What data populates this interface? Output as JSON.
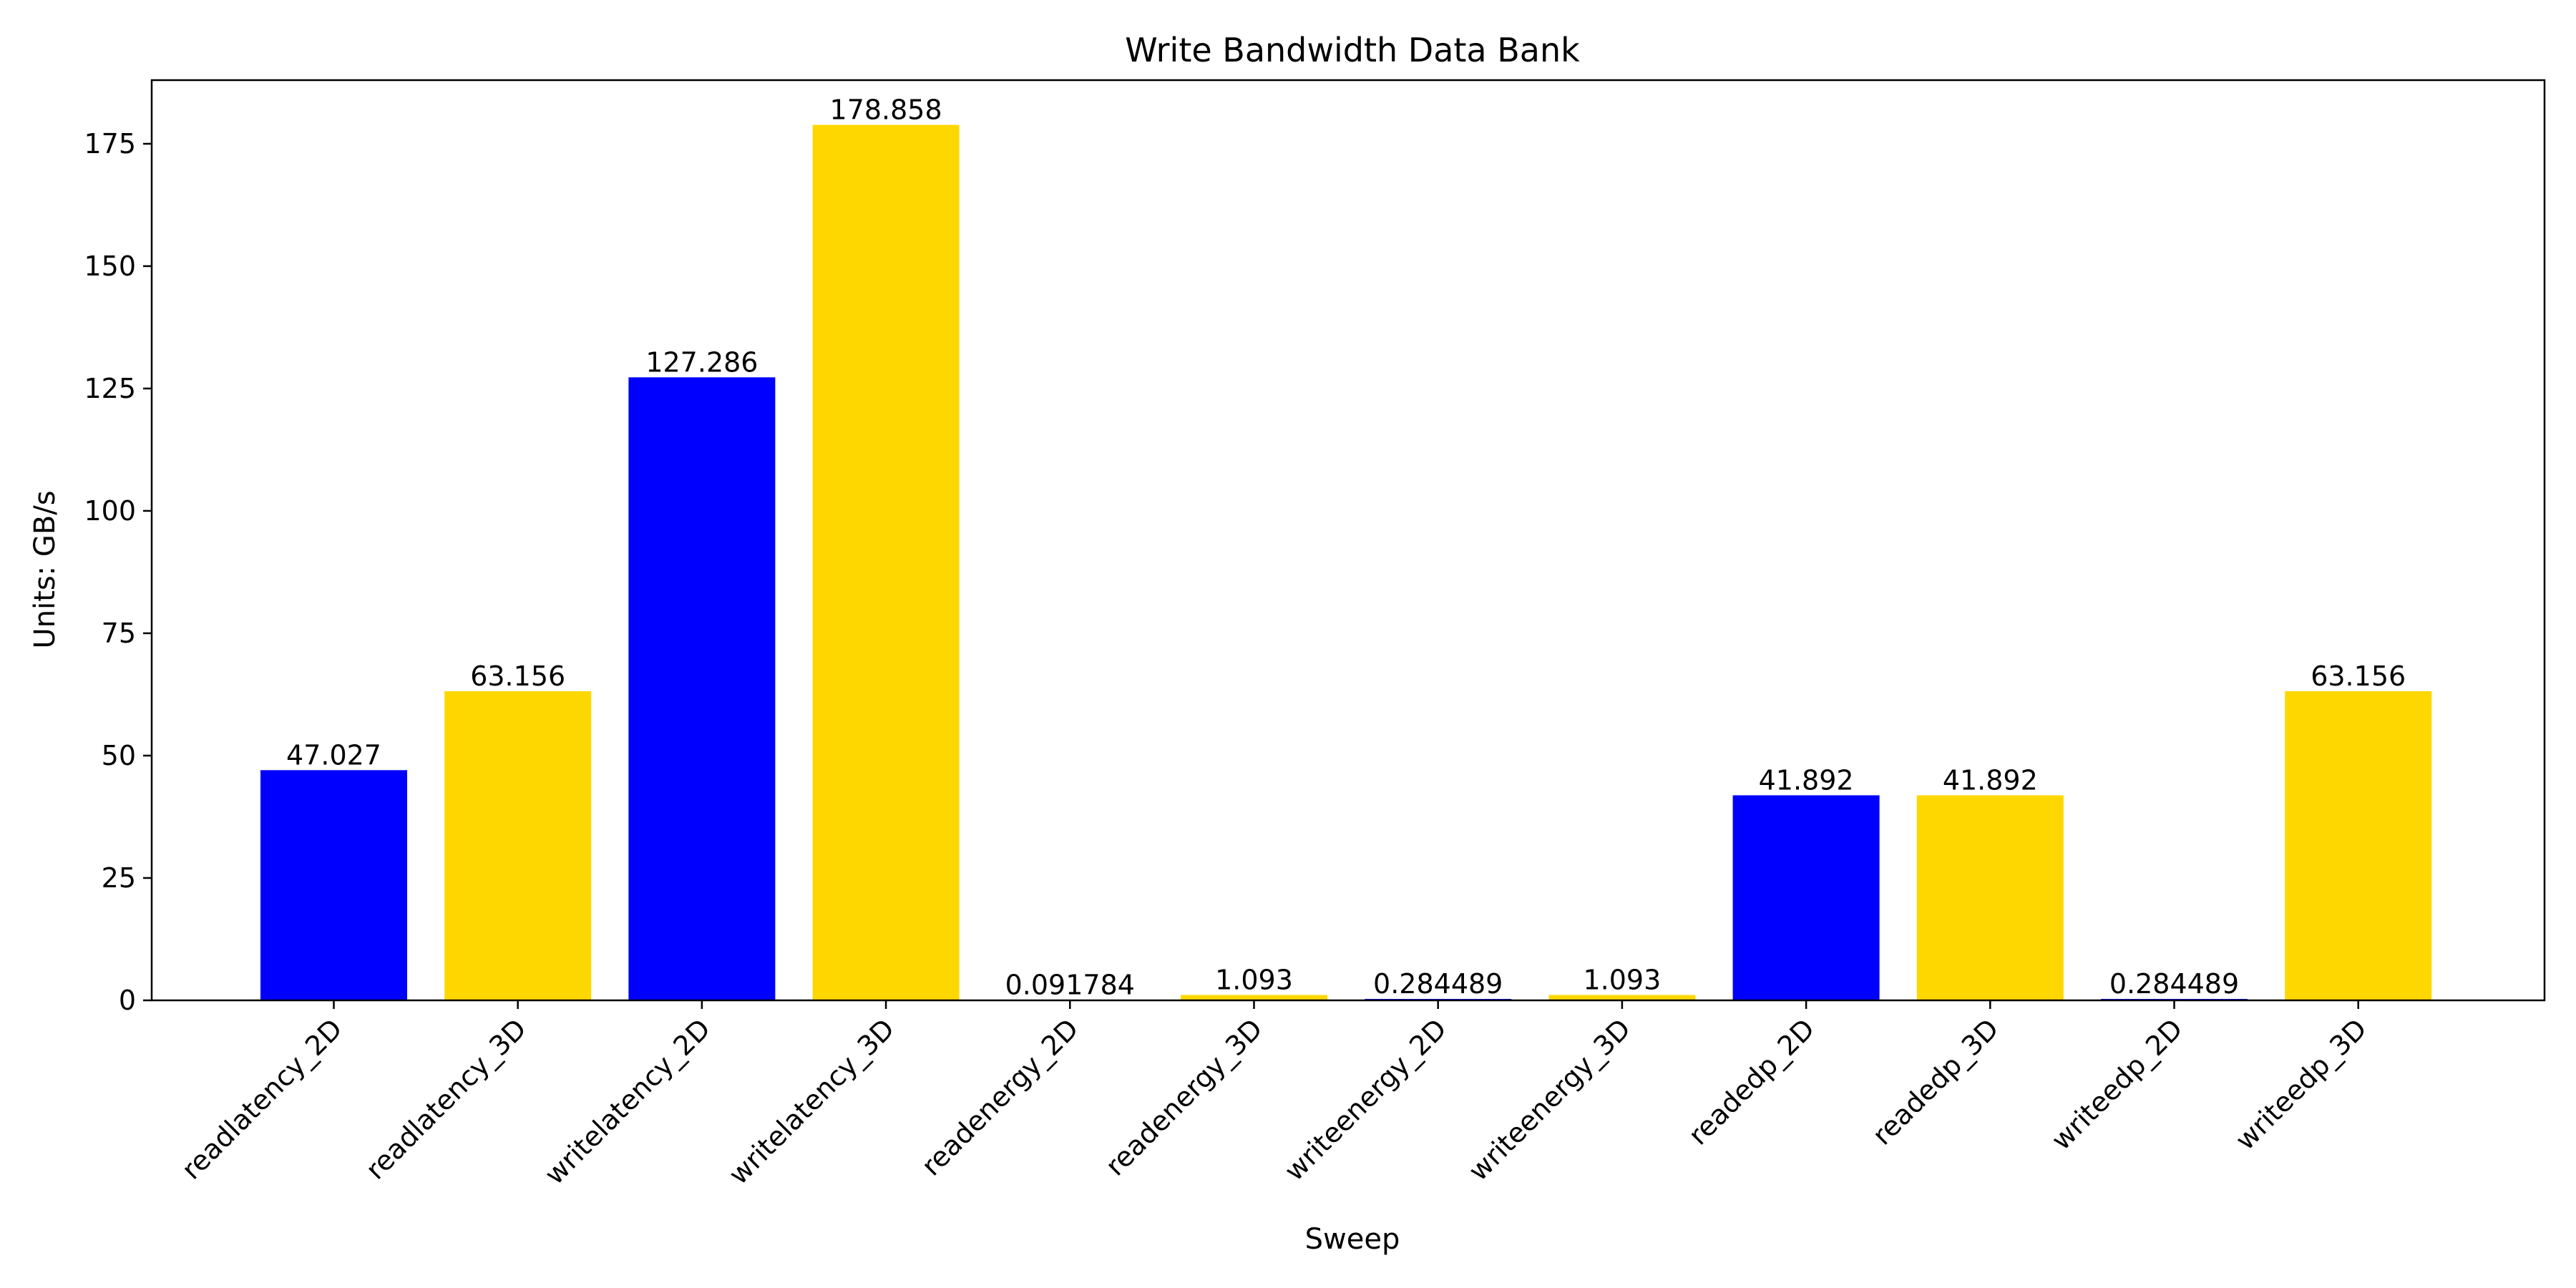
{
  "chart_data": {
    "type": "bar",
    "title": "Write Bandwidth Data Bank",
    "xlabel": "Sweep",
    "ylabel": "Units: GB/s",
    "ylim": [
      0,
      188
    ],
    "yticks": [
      0,
      25,
      50,
      75,
      100,
      125,
      150,
      175
    ],
    "grid": false,
    "legend": "none",
    "categories": [
      "readlatency_2D",
      "readlatency_3D",
      "writelatency_2D",
      "writelatency_3D",
      "readenergy_2D",
      "readenergy_3D",
      "writeenergy_2D",
      "writeenergy_3D",
      "readedp_2D",
      "readedp_3D",
      "writeedp_2D",
      "writeedp_3D"
    ],
    "values": [
      47.027,
      63.156,
      127.286,
      178.858,
      0.091784,
      1.093,
      0.284489,
      1.093,
      41.892,
      41.892,
      0.284489,
      63.156
    ],
    "value_labels": [
      "47.027",
      "63.156",
      "127.286",
      "178.858",
      "0.091784",
      "1.093",
      "0.284489",
      "1.093",
      "41.892",
      "41.892",
      "0.284489",
      "63.156"
    ],
    "colors": [
      "#0000ff",
      "#ffd700",
      "#0000ff",
      "#ffd700",
      "#0000ff",
      "#ffd700",
      "#0000ff",
      "#ffd700",
      "#0000ff",
      "#ffd700",
      "#0000ff",
      "#ffd700"
    ]
  }
}
